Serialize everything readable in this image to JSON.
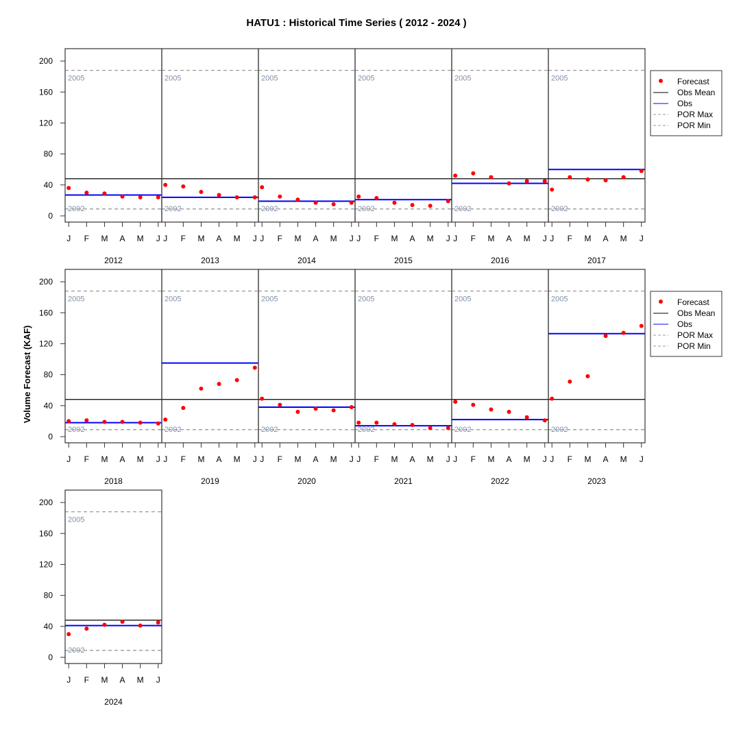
{
  "chart_data": {
    "type": "scatter",
    "title": "HATU1 : Historical Time Series ( 2012 - 2024 )",
    "ylabel": "Volume Forecast (KAF)",
    "xlabel": "",
    "ylim": [
      -8,
      216
    ],
    "yticks": [
      0,
      40,
      80,
      120,
      160,
      200
    ],
    "months": [
      "J",
      "F",
      "M",
      "A",
      "M",
      "J"
    ],
    "obs_mean": 48,
    "por_max": {
      "value": 188,
      "label": "2005"
    },
    "por_min": {
      "value": 9,
      "label": "2002"
    },
    "legend": {
      "placement": "right",
      "entries": [
        "Forecast",
        "Obs Mean",
        "Obs",
        "POR Max",
        "POR Min"
      ]
    },
    "colors": {
      "forecast": "#ff0000",
      "obs": "#0000ff",
      "obs_mean": "#000000",
      "por": "#999999",
      "por_label": "#8090a8"
    },
    "years": [
      {
        "year": "2012",
        "forecast": [
          36,
          30,
          29,
          25,
          24,
          24
        ],
        "obs": 27
      },
      {
        "year": "2013",
        "forecast": [
          40,
          38,
          31,
          27,
          24,
          24
        ],
        "obs": 24
      },
      {
        "year": "2014",
        "forecast": [
          37,
          25,
          21,
          17,
          15,
          17
        ],
        "obs": 19
      },
      {
        "year": "2015",
        "forecast": [
          25,
          23,
          17,
          14,
          13,
          19
        ],
        "obs": 21
      },
      {
        "year": "2016",
        "forecast": [
          52,
          55,
          50,
          42,
          45,
          45
        ],
        "obs": 42
      },
      {
        "year": "2017",
        "forecast": [
          34,
          50,
          47,
          46,
          50,
          58
        ],
        "obs": 60
      },
      {
        "year": "2018",
        "forecast": [
          20,
          21,
          19,
          19,
          18,
          17
        ],
        "obs": 18
      },
      {
        "year": "2019",
        "forecast": [
          22,
          37,
          62,
          68,
          73,
          89
        ],
        "obs": 95
      },
      {
        "year": "2020",
        "forecast": [
          49,
          41,
          32,
          36,
          34,
          38
        ],
        "obs": 38
      },
      {
        "year": "2021",
        "forecast": [
          18,
          18,
          16,
          15,
          11,
          11
        ],
        "obs": 14
      },
      {
        "year": "2022",
        "forecast": [
          45,
          41,
          35,
          32,
          25,
          21
        ],
        "obs": 22
      },
      {
        "year": "2023",
        "forecast": [
          49,
          71,
          78,
          130,
          134,
          143
        ],
        "obs": 133
      },
      {
        "year": "2024",
        "forecast": [
          30,
          37,
          42,
          46,
          41,
          45
        ],
        "obs": 41
      }
    ]
  }
}
